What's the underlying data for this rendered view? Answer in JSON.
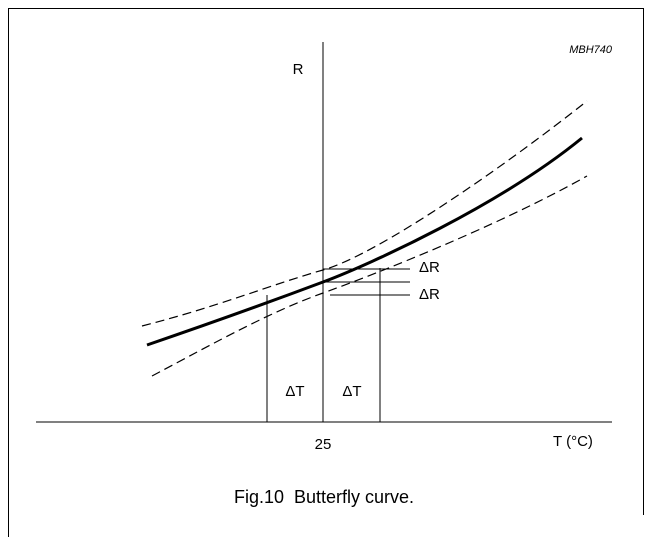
{
  "code": "MBH740",
  "y_axis_label": "R",
  "x_axis_label": "T (°C)",
  "x_center_label": "25",
  "delta_t_left": "ΔT",
  "delta_t_right": "ΔT",
  "delta_r_upper": "ΔR",
  "delta_r_lower": "ΔR",
  "caption": "Fig.10  Butterfly curve."
}
